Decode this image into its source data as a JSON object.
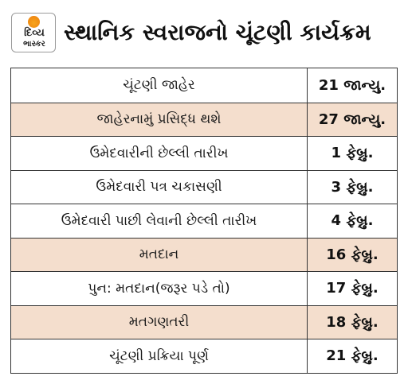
{
  "header": {
    "logo_line1": "દિવ્ય",
    "logo_line2": "ભાસ્કર",
    "title": "સ્થાનિક સ્વરાજનો ચૂંટણી કાર્યક્રમ"
  },
  "colors": {
    "shaded_row": "#f4decd",
    "logo_sun": "#f08a12",
    "border": "#333333"
  },
  "schedule": [
    {
      "event": "ચૂંટણી જાહેર",
      "date": "21 જાન્યુ.",
      "shaded": false
    },
    {
      "event": "જાહેરનામું પ્રસિદ્ધ થશે",
      "date": "27 જાન્યુ.",
      "shaded": true
    },
    {
      "event": "ઉમેદવારીની છેલ્લી તારીખ",
      "date": "1 ફેબ્રુ.",
      "shaded": false
    },
    {
      "event": "ઉમેદવારી પત્ર ચકાસણી",
      "date": "3 ફેબ્રુ.",
      "shaded": false
    },
    {
      "event": "ઉમેદવારી પાછી લેવાની છેલ્લી તારીખ",
      "date": "4 ફેબ્રુ.",
      "shaded": false
    },
    {
      "event": "મતદાન",
      "date": "16 ફેબ્રુ.",
      "shaded": true
    },
    {
      "event": "પુન: મતદાન(જરૂર પડે તો)",
      "date": "17 ફેબ્રુ.",
      "shaded": false
    },
    {
      "event": "મતગણતરી",
      "date": "18 ફેબ્રુ.",
      "shaded": true
    },
    {
      "event": "ચૂંટણી પ્રક્રિયા પૂર્ણ",
      "date": "21 ફેબ્રુ.",
      "shaded": false
    }
  ]
}
